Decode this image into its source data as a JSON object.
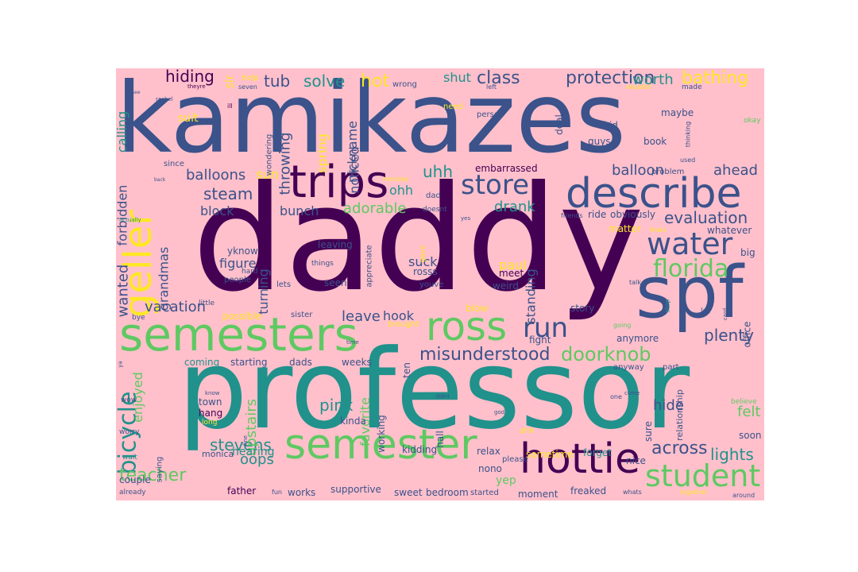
{
  "colors": {
    "canvas_background": "#ffffff",
    "cloud_background": "#ffc0cb",
    "palette": [
      "#440154",
      "#3b528b",
      "#21918c",
      "#5ec962",
      "#fde725"
    ]
  },
  "words": [
    {
      "text": "kamikazes",
      "color": "#3b528b"
    },
    {
      "text": "daddy",
      "color": "#440154"
    },
    {
      "text": "professor",
      "color": "#21918c"
    },
    {
      "text": "semesters",
      "color": "#5ec962"
    },
    {
      "text": "spf",
      "color": "#3b528b"
    },
    {
      "text": "describe",
      "color": "#3b528b"
    },
    {
      "text": "trips",
      "color": "#440154"
    },
    {
      "text": "ross",
      "color": "#5ec962"
    },
    {
      "text": "semester",
      "color": "#5ec962"
    },
    {
      "text": "hottie",
      "color": "#440154"
    },
    {
      "text": "student",
      "color": "#5ec962"
    },
    {
      "text": "geller",
      "color": "#fde725"
    },
    {
      "text": "water",
      "color": "#3b528b"
    },
    {
      "text": "florida",
      "color": "#5ec962"
    },
    {
      "text": "run",
      "color": "#3b528b"
    },
    {
      "text": "store",
      "color": "#3b528b"
    },
    {
      "text": "bicycle",
      "color": "#21918c"
    },
    {
      "text": "misunderstood",
      "color": "#3b528b"
    },
    {
      "text": "doorknob",
      "color": "#5ec962"
    },
    {
      "text": "protection",
      "color": "#3b528b"
    },
    {
      "text": "class",
      "color": "#3b528b"
    },
    {
      "text": "evaluation",
      "color": "#3b528b"
    },
    {
      "text": "bathing",
      "color": "#fde725"
    },
    {
      "text": "worth",
      "color": "#21918c"
    },
    {
      "text": "hiding",
      "color": "#440154"
    },
    {
      "text": "tub",
      "color": "#3b528b"
    },
    {
      "text": "solve",
      "color": "#21918c"
    },
    {
      "text": "hot",
      "color": "#fde725"
    },
    {
      "text": "shut",
      "color": "#21918c"
    },
    {
      "text": "throwing",
      "color": "#3b528b"
    },
    {
      "text": "balloons",
      "color": "#3b528b"
    },
    {
      "text": "steam",
      "color": "#3b528b"
    },
    {
      "text": "block",
      "color": "#3b528b"
    },
    {
      "text": "bunch",
      "color": "#3b528b"
    },
    {
      "text": "adorable",
      "color": "#5ec962"
    },
    {
      "text": "uhh",
      "color": "#21918c"
    },
    {
      "text": "ohh",
      "color": "#21918c"
    },
    {
      "text": "drank",
      "color": "#21918c"
    },
    {
      "text": "plenty",
      "color": "#3b528b"
    },
    {
      "text": "lights",
      "color": "#21918c"
    },
    {
      "text": "stevens",
      "color": "#21918c"
    },
    {
      "text": "teacher",
      "color": "#5ec962"
    },
    {
      "text": "oops",
      "color": "#21918c"
    },
    {
      "text": "vacation",
      "color": "#3b528b"
    },
    {
      "text": "wanted",
      "color": "#3b528b"
    },
    {
      "text": "forbidden",
      "color": "#3b528b"
    },
    {
      "text": "calling",
      "color": "#21918c"
    },
    {
      "text": "grandmas",
      "color": "#3b528b"
    },
    {
      "text": "across",
      "color": "#3b528b"
    },
    {
      "text": "felt",
      "color": "#5ec962"
    },
    {
      "text": "hide",
      "color": "#3b528b"
    },
    {
      "text": "pink",
      "color": "#21918c"
    },
    {
      "text": "leave",
      "color": "#3b528b"
    },
    {
      "text": "hook",
      "color": "#3b528b"
    },
    {
      "text": "suck",
      "color": "#3b528b"
    },
    {
      "text": "paul",
      "color": "#fde725"
    },
    {
      "text": "figure",
      "color": "#3b528b"
    },
    {
      "text": "turning",
      "color": "#3b528b"
    },
    {
      "text": "ahead",
      "color": "#3b528b"
    },
    {
      "text": "balloon",
      "color": "#3b528b"
    },
    {
      "text": "upstairs",
      "color": "#5ec962"
    },
    {
      "text": "favorite",
      "color": "#5ec962"
    },
    {
      "text": "standing",
      "color": "#3b528b"
    },
    {
      "text": "enjoyed",
      "color": "#5ec962"
    },
    {
      "text": "nickname",
      "color": "#3b528b"
    },
    {
      "text": "noticed",
      "color": "#3b528b"
    },
    {
      "text": "spring",
      "color": "#fde725"
    },
    {
      "text": "sun",
      "color": "#fde725"
    },
    {
      "text": "embarrassed",
      "color": "#440154"
    },
    {
      "text": "book",
      "color": "#3b528b"
    },
    {
      "text": "maybe",
      "color": "#3b528b"
    },
    {
      "text": "kid",
      "color": "#3b528b"
    },
    {
      "text": "guys",
      "color": "#3b528b"
    },
    {
      "text": "deal",
      "color": "#3b528b"
    },
    {
      "text": "person",
      "color": "#3b528b"
    },
    {
      "text": "wondering",
      "color": "#3b528b"
    },
    {
      "text": "suit",
      "color": "#fde725"
    },
    {
      "text": "sir",
      "color": "#fde725"
    },
    {
      "text": "help",
      "color": "#fde725"
    },
    {
      "text": "seven",
      "color": "#3b528b"
    },
    {
      "text": "theyre",
      "color": "#440154"
    },
    {
      "text": "wrong",
      "color": "#3b528b"
    },
    {
      "text": "ill",
      "color": "#440154"
    },
    {
      "text": "since",
      "color": "#3b528b"
    },
    {
      "text": "rosss",
      "color": "#3b528b"
    },
    {
      "text": "meet",
      "color": "#440154"
    },
    {
      "text": "weird",
      "color": "#3b528b"
    },
    {
      "text": "seen",
      "color": "#3b528b"
    },
    {
      "text": "leaving",
      "color": "#3b528b"
    },
    {
      "text": "yknow",
      "color": "#3b528b"
    },
    {
      "text": "people",
      "color": "#3b528b"
    },
    {
      "text": "hard",
      "color": "#3b528b"
    },
    {
      "text": "lets",
      "color": "#3b528b"
    },
    {
      "text": "appreciate",
      "color": "#3b528b"
    },
    {
      "text": "youve",
      "color": "#3b528b"
    },
    {
      "text": "dad",
      "color": "#3b528b"
    },
    {
      "text": "doesnt",
      "color": "#3b528b"
    },
    {
      "text": "minutes",
      "color": "#fde725"
    },
    {
      "text": "friends",
      "color": "#3b528b"
    },
    {
      "text": "ride",
      "color": "#3b528b"
    },
    {
      "text": "obviously",
      "color": "#3b528b"
    },
    {
      "text": "whatever",
      "color": "#3b528b"
    },
    {
      "text": "matter",
      "color": "#fde725"
    },
    {
      "text": "problem",
      "color": "#3b528b"
    },
    {
      "text": "used",
      "color": "#3b528b"
    },
    {
      "text": "big",
      "color": "#3b528b"
    },
    {
      "text": "anymore",
      "color": "#3b528b"
    },
    {
      "text": "story",
      "color": "#3b528b"
    },
    {
      "text": "blow",
      "color": "#fde725"
    },
    {
      "text": "fight",
      "color": "#3b528b"
    },
    {
      "text": "brought",
      "color": "#fde725"
    },
    {
      "text": "possible",
      "color": "#fde725"
    },
    {
      "text": "sister",
      "color": "#3b528b"
    },
    {
      "text": "coming",
      "color": "#21918c"
    },
    {
      "text": "starting",
      "color": "#3b528b"
    },
    {
      "text": "dads",
      "color": "#3b528b"
    },
    {
      "text": "weeks",
      "color": "#3b528b"
    },
    {
      "text": "ten",
      "color": "#3b528b"
    },
    {
      "text": "town",
      "color": "#3b528b"
    },
    {
      "text": "hang",
      "color": "#440154"
    },
    {
      "text": "long",
      "color": "#fde725"
    },
    {
      "text": "hearing",
      "color": "#21918c"
    },
    {
      "text": "monica",
      "color": "#3b528b"
    },
    {
      "text": "couple",
      "color": "#3b528b"
    },
    {
      "text": "father",
      "color": "#440154"
    },
    {
      "text": "works",
      "color": "#3b528b"
    },
    {
      "text": "supportive",
      "color": "#3b528b"
    },
    {
      "text": "sweet",
      "color": "#3b528b"
    },
    {
      "text": "bedroom",
      "color": "#3b528b"
    },
    {
      "text": "started",
      "color": "#3b528b"
    },
    {
      "text": "moment",
      "color": "#3b528b"
    },
    {
      "text": "freaked",
      "color": "#3b528b"
    },
    {
      "text": "whats",
      "color": "#3b528b"
    },
    {
      "text": "together",
      "color": "#fde725"
    },
    {
      "text": "around",
      "color": "#3b528b"
    },
    {
      "text": "yep",
      "color": "#5ec962"
    },
    {
      "text": "nono",
      "color": "#3b528b"
    },
    {
      "text": "relax",
      "color": "#3b528b"
    },
    {
      "text": "sometime",
      "color": "#fde725"
    },
    {
      "text": "kidding",
      "color": "#3b528b"
    },
    {
      "text": "working",
      "color": "#3b528b"
    },
    {
      "text": "kinda",
      "color": "#3b528b"
    },
    {
      "text": "hall",
      "color": "#3b528b"
    },
    {
      "text": "please",
      "color": "#3b528b"
    },
    {
      "text": "forget",
      "color": "#21918c"
    },
    {
      "text": "nice",
      "color": "#3b528b"
    },
    {
      "text": "sure",
      "color": "#3b528b"
    },
    {
      "text": "soon",
      "color": "#3b528b"
    },
    {
      "text": "part",
      "color": "#3b528b"
    },
    {
      "text": "anyway",
      "color": "#3b528b"
    },
    {
      "text": "relationship",
      "color": "#3b528b"
    },
    {
      "text": "believe",
      "color": "#5ec962"
    },
    {
      "text": "office",
      "color": "#3b528b"
    },
    {
      "text": "lot",
      "color": "#3b528b"
    },
    {
      "text": "okay",
      "color": "#5ec962"
    },
    {
      "text": "thinking",
      "color": "#3b528b"
    },
    {
      "text": "made",
      "color": "#3b528b"
    },
    {
      "text": "wouldnt",
      "color": "#fde725"
    },
    {
      "text": "left",
      "color": "#3b528b"
    },
    {
      "text": "need",
      "color": "#fde725"
    },
    {
      "text": "things",
      "color": "#3b528b"
    },
    {
      "text": "gave",
      "color": "#fde725"
    },
    {
      "text": "saying",
      "color": "#3b528b"
    },
    {
      "text": "worry",
      "color": "#3b528b"
    },
    {
      "text": "wait",
      "color": "#21918c"
    },
    {
      "text": "wow",
      "color": "#3b528b"
    },
    {
      "text": "bye",
      "color": "#3b528b"
    },
    {
      "text": "little",
      "color": "#3b528b"
    },
    {
      "text": "already",
      "color": "#3b528b"
    },
    {
      "text": "fun",
      "color": "#3b528b"
    },
    {
      "text": "didnt",
      "color": "#3b528b"
    },
    {
      "text": "god",
      "color": "#3b528b"
    },
    {
      "text": "ahh",
      "color": "#fde725"
    },
    {
      "text": "talk",
      "color": "#3b528b"
    },
    {
      "text": "going",
      "color": "#5ec962"
    },
    {
      "text": "stop",
      "color": "#21918c"
    },
    {
      "text": "card",
      "color": "#3b528b"
    },
    {
      "text": "actually",
      "color": "#21918c"
    },
    {
      "text": "one",
      "color": "#3b528b"
    },
    {
      "text": "come",
      "color": "#3b528b"
    },
    {
      "text": "yes",
      "color": "#3b528b"
    },
    {
      "text": "know",
      "color": "#3b528b"
    },
    {
      "text": "thats",
      "color": "#fde725"
    },
    {
      "text": "rachel",
      "color": "#3b528b"
    },
    {
      "text": "see",
      "color": "#3b528b"
    },
    {
      "text": "back",
      "color": "#3b528b"
    },
    {
      "text": "fine",
      "color": "#3b528b"
    },
    {
      "text": "ya",
      "color": "#3b528b"
    },
    {
      "text": "time",
      "color": "#3b528b"
    }
  ]
}
